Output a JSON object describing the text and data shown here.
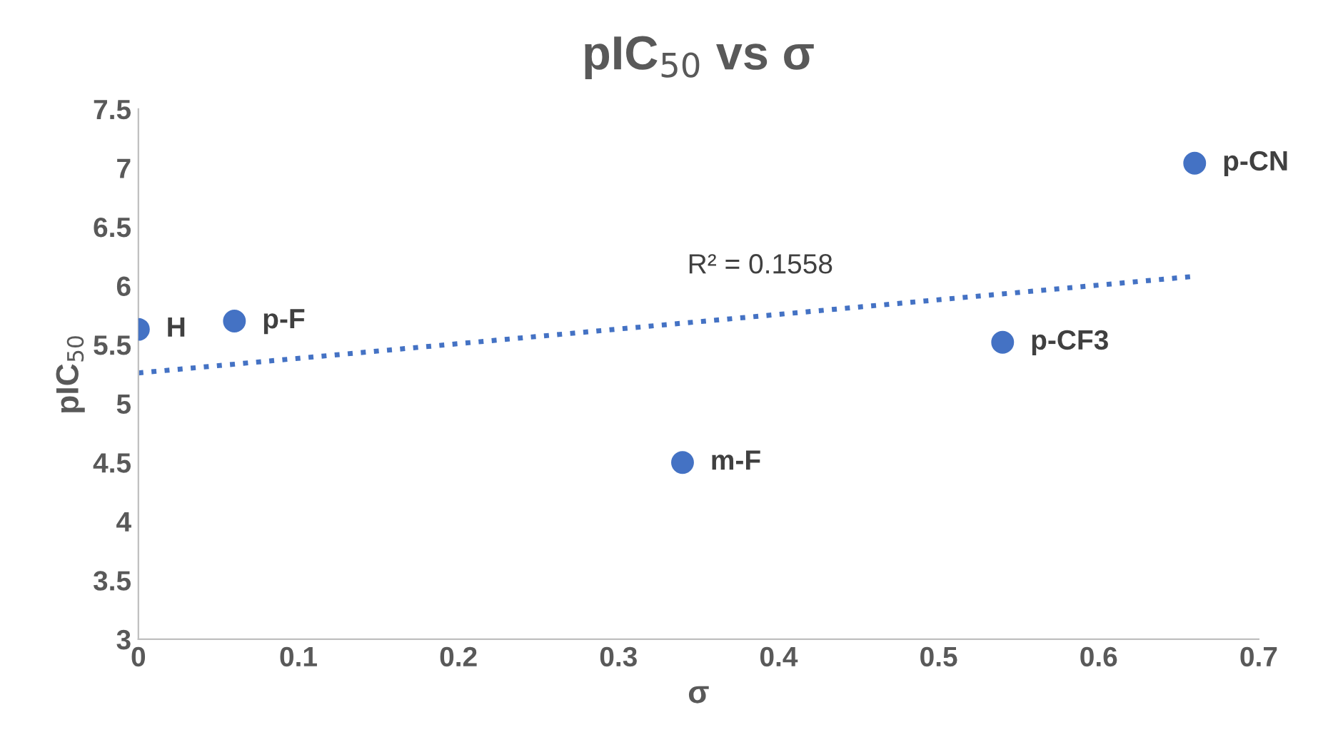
{
  "chart_data": {
    "type": "scatter",
    "title": "pIC$_{50}$ vs σ",
    "xlabel": "σ",
    "ylabel": "pIC$_{50}$",
    "x": [
      0,
      0.06,
      0.34,
      0.54,
      0.66
    ],
    "series": [
      {
        "color": "#4472c4",
        "values": [
          5.63,
          5.7,
          4.5,
          5.52,
          7.04
        ]
      },
      {
        "type": "line",
        "color": "#4472c4",
        "line_style": "dotted",
        "marker": "none",
        "x": [
          0,
          0.66
        ],
        "values": [
          5.26,
          6.08
        ]
      }
    ],
    "marker": "circle",
    "annotations": [
      {
        "text": "H",
        "x": 0,
        "y": 5.63
      },
      {
        "text": "p-F",
        "x": 0.06,
        "y": 5.7
      },
      {
        "text": "m-F",
        "x": 0.34,
        "y": 4.5
      },
      {
        "text": "p-CF3",
        "x": 0.54,
        "y": 5.52
      },
      {
        "text": "p-CN",
        "x": 0.66,
        "y": 7.04
      },
      "R² = 0.1558"
    ],
    "xlim": [
      0,
      0.7
    ],
    "xticks": [
      0,
      0.1,
      0.2,
      0.3,
      0.4,
      0.5,
      0.6,
      0.7
    ],
    "ylim": [
      3,
      7.5
    ],
    "yticks": [
      3,
      3.5,
      4,
      4.5,
      5,
      5.5,
      6,
      6.5,
      7,
      7.5
    ],
    "grid": false,
    "legend": false
  }
}
